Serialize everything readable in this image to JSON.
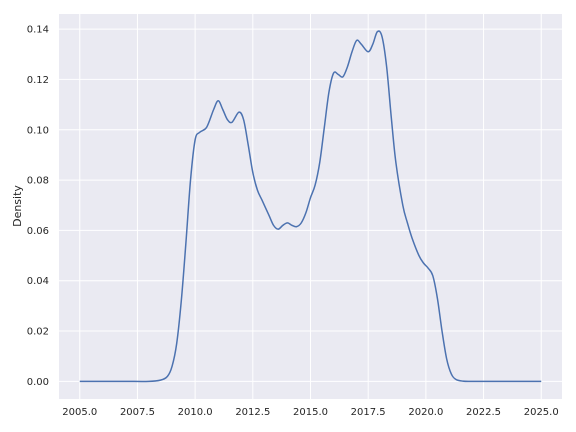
{
  "chart_data": {
    "type": "line",
    "title": "",
    "xlabel": "",
    "ylabel": "Density",
    "xlim": [
      2004.1,
      2025.9
    ],
    "ylim": [
      -0.007,
      0.146
    ],
    "grid": true,
    "xticks": [
      2005.0,
      2007.5,
      2010.0,
      2012.5,
      2015.0,
      2017.5,
      2020.0,
      2022.5,
      2025.0
    ],
    "xtick_labels": [
      "2005.0",
      "2007.5",
      "2010.0",
      "2012.5",
      "2015.0",
      "2017.5",
      "2020.0",
      "2022.5",
      "2025.0"
    ],
    "yticks": [
      0.0,
      0.02,
      0.04,
      0.06,
      0.08,
      0.1,
      0.12,
      0.14
    ],
    "ytick_labels": [
      "0.00",
      "0.02",
      "0.04",
      "0.06",
      "0.08",
      "0.10",
      "0.12",
      "0.14"
    ],
    "series": [
      {
        "color": "#4c72b0",
        "x": [
          2005.0,
          2006.0,
          2007.0,
          2008.0,
          2008.5,
          2008.8,
          2009.0,
          2009.2,
          2009.4,
          2009.6,
          2009.8,
          2010.0,
          2010.2,
          2010.5,
          2010.8,
          2011.0,
          2011.2,
          2011.4,
          2011.6,
          2011.9,
          2012.1,
          2012.3,
          2012.5,
          2012.7,
          2012.9,
          2013.2,
          2013.4,
          2013.6,
          2013.8,
          2014.0,
          2014.2,
          2014.4,
          2014.6,
          2014.8,
          2015.0,
          2015.2,
          2015.4,
          2015.6,
          2015.8,
          2016.0,
          2016.2,
          2016.4,
          2016.6,
          2016.8,
          2017.0,
          2017.2,
          2017.5,
          2017.7,
          2017.9,
          2018.1,
          2018.3,
          2018.5,
          2018.7,
          2019.0,
          2019.2,
          2019.4,
          2019.7,
          2019.9,
          2020.1,
          2020.3,
          2020.5,
          2020.7,
          2020.9,
          2021.1,
          2021.3,
          2021.6,
          2022.0,
          2023.0,
          2024.0,
          2025.0
        ],
        "y": [
          0.0,
          0.0,
          0.0,
          0.0,
          0.0005,
          0.002,
          0.006,
          0.015,
          0.032,
          0.055,
          0.08,
          0.096,
          0.099,
          0.101,
          0.108,
          0.1115,
          0.108,
          0.104,
          0.103,
          0.107,
          0.104,
          0.094,
          0.083,
          0.076,
          0.072,
          0.066,
          0.062,
          0.0605,
          0.062,
          0.063,
          0.062,
          0.0615,
          0.063,
          0.067,
          0.073,
          0.078,
          0.087,
          0.101,
          0.115,
          0.1225,
          0.122,
          0.121,
          0.125,
          0.131,
          0.1355,
          0.134,
          0.131,
          0.134,
          0.139,
          0.137,
          0.125,
          0.105,
          0.087,
          0.07,
          0.063,
          0.057,
          0.05,
          0.047,
          0.045,
          0.042,
          0.033,
          0.02,
          0.009,
          0.003,
          0.0008,
          0.0001,
          0.0,
          0.0,
          0.0,
          0.0
        ]
      }
    ]
  }
}
